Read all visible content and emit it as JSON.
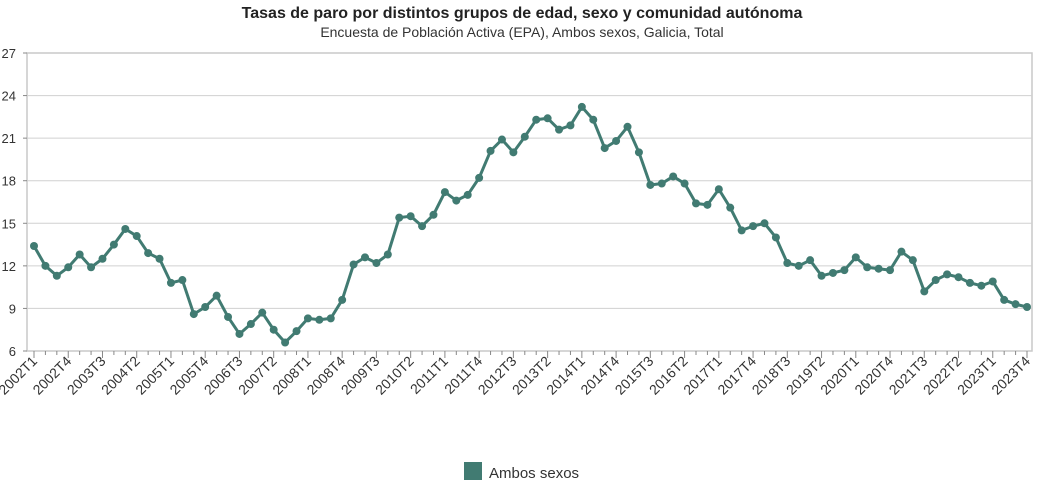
{
  "chart_data": {
    "type": "line",
    "title": "Tasas de paro por distintos grupos de edad, sexo y comunidad autónoma",
    "subtitle": "Encuesta de Población Activa (EPA), Ambos sexos, Galicia, Total",
    "xlabel": "",
    "ylabel": "",
    "ylim": [
      6,
      27
    ],
    "yticks": [
      "6",
      "9",
      "12",
      "15",
      "18",
      "21",
      "24",
      "27"
    ],
    "grid": true,
    "legend_position": "bottom-center",
    "x_tick_labels": [
      "2002T1",
      "2002T4",
      "2003T3",
      "2004T2",
      "2005T1",
      "2005T4",
      "2006T3",
      "2007T2",
      "2008T1",
      "2008T4",
      "2009T3",
      "2010T2",
      "2011T1",
      "2011T4",
      "2012T3",
      "2013T2",
      "2014T1",
      "2014T4",
      "2015T3",
      "2016T2",
      "2017T1",
      "2017T4",
      "2018T3",
      "2019T2",
      "2020T1",
      "2020T4",
      "2021T3",
      "2022T2",
      "2023T1",
      "2023T4"
    ],
    "categories": [
      "2002T1",
      "2002T2",
      "2002T3",
      "2002T4",
      "2003T1",
      "2003T2",
      "2003T3",
      "2003T4",
      "2004T1",
      "2004T2",
      "2004T3",
      "2004T4",
      "2005T1",
      "2005T2",
      "2005T3",
      "2005T4",
      "2006T1",
      "2006T2",
      "2006T3",
      "2006T4",
      "2007T1",
      "2007T2",
      "2007T3",
      "2007T4",
      "2008T1",
      "2008T2",
      "2008T3",
      "2008T4",
      "2009T1",
      "2009T2",
      "2009T3",
      "2009T4",
      "2010T1",
      "2010T2",
      "2010T3",
      "2010T4",
      "2011T1",
      "2011T2",
      "2011T3",
      "2011T4",
      "2012T1",
      "2012T2",
      "2012T3",
      "2012T4",
      "2013T1",
      "2013T2",
      "2013T3",
      "2013T4",
      "2014T1",
      "2014T2",
      "2014T3",
      "2014T4",
      "2015T1",
      "2015T2",
      "2015T3",
      "2015T4",
      "2016T1",
      "2016T2",
      "2016T3",
      "2016T4",
      "2017T1",
      "2017T2",
      "2017T3",
      "2017T4",
      "2018T1",
      "2018T2",
      "2018T3",
      "2018T4",
      "2019T1",
      "2019T2",
      "2019T3",
      "2019T4",
      "2020T1",
      "2020T2",
      "2020T3",
      "2020T4",
      "2021T1",
      "2021T2",
      "2021T3",
      "2021T4",
      "2022T1",
      "2022T2",
      "2022T3",
      "2022T4",
      "2023T1",
      "2023T2",
      "2023T3",
      "2023T4"
    ],
    "series": [
      {
        "name": "Ambos sexos",
        "color": "#417b72",
        "values": [
          13.4,
          12.0,
          11.3,
          11.9,
          12.8,
          11.9,
          12.5,
          13.5,
          14.6,
          14.1,
          12.9,
          12.5,
          10.8,
          11.0,
          8.6,
          9.1,
          9.9,
          8.4,
          7.2,
          7.9,
          8.7,
          7.5,
          6.6,
          7.4,
          8.3,
          8.2,
          8.3,
          9.6,
          12.1,
          12.6,
          12.2,
          12.8,
          15.4,
          15.5,
          14.8,
          15.6,
          17.2,
          16.6,
          17.0,
          18.2,
          20.1,
          20.9,
          20.0,
          21.1,
          22.3,
          22.4,
          21.6,
          21.9,
          23.2,
          22.3,
          20.3,
          20.8,
          21.8,
          20.0,
          17.7,
          17.8,
          18.3,
          17.8,
          16.4,
          16.3,
          17.4,
          16.1,
          14.5,
          14.8,
          15.0,
          14.0,
          12.2,
          12.0,
          12.4,
          11.3,
          11.5,
          11.7,
          12.6,
          11.9,
          11.8,
          11.7,
          13.0,
          12.4,
          10.2,
          11.0,
          11.4,
          11.2,
          10.8,
          10.6,
          10.9,
          9.6,
          9.3,
          9.1
        ]
      }
    ]
  }
}
